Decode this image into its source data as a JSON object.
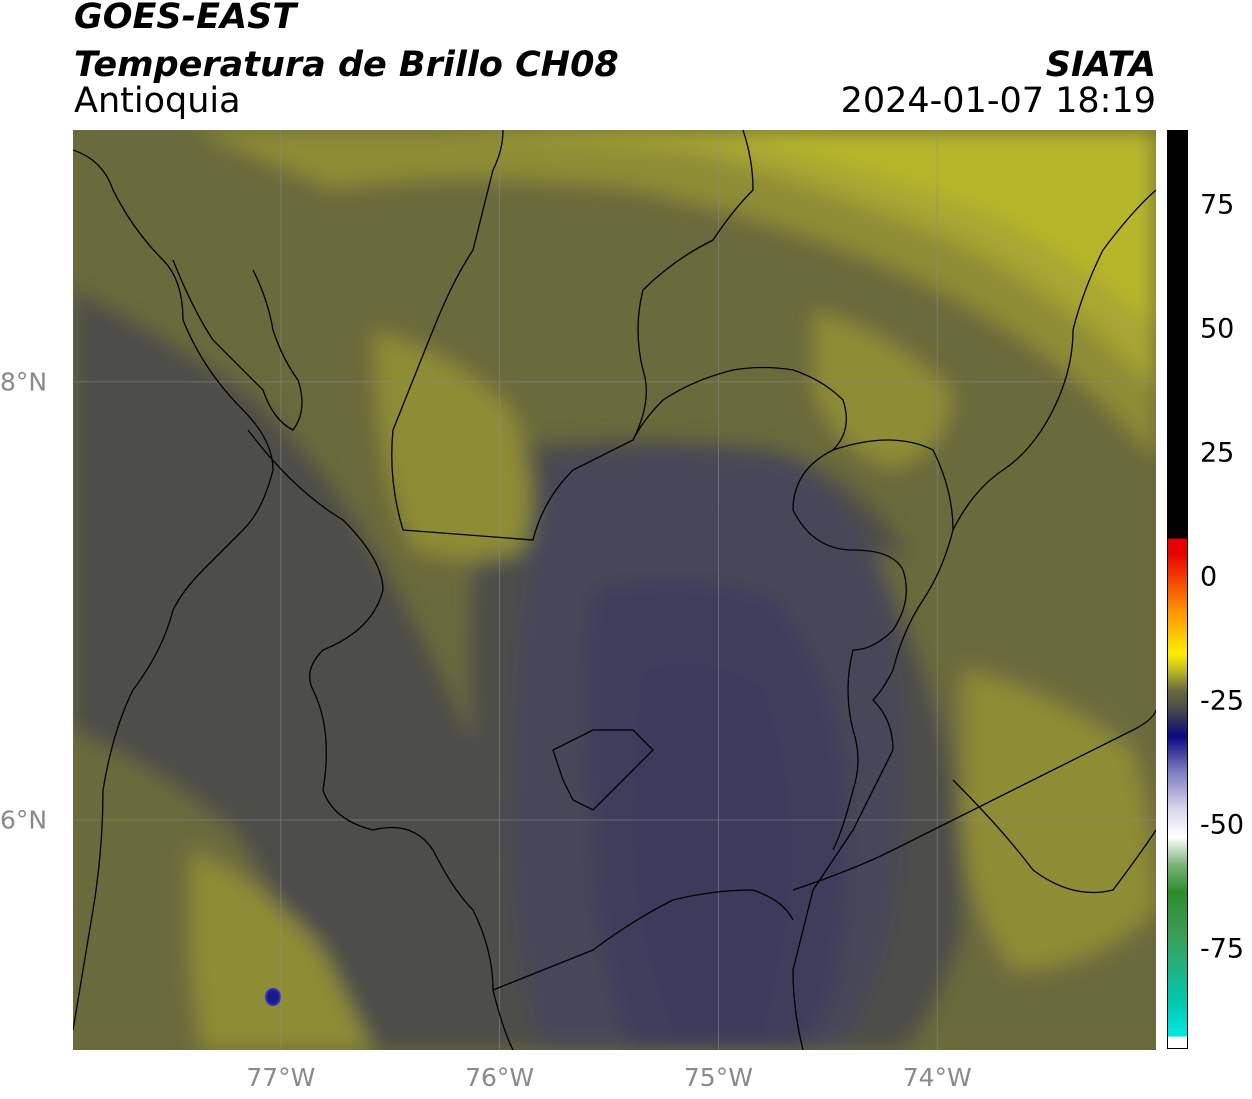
{
  "header": {
    "satellite": "GOES-EAST",
    "product": "Temperatura de Brillo CH08",
    "region": "Antioquia",
    "organization": "SIATA",
    "timestamp": "2024-01-07 18:19"
  },
  "map": {
    "lon_range": [
      -77.95,
      -73.0
    ],
    "lat_range": [
      4.95,
      9.15
    ],
    "lon_ticks": [
      {
        "value": -77,
        "label": "77°W"
      },
      {
        "value": -76,
        "label": "76°W"
      },
      {
        "value": -75,
        "label": "75°W"
      },
      {
        "value": -74,
        "label": "74°W"
      }
    ],
    "lat_ticks": [
      {
        "value": 8,
        "label": "8°N"
      },
      {
        "value": 6,
        "label": "6°N"
      }
    ],
    "gridlines": true
  },
  "colorbar": {
    "range": [
      -95,
      90
    ],
    "ticks": [
      "75",
      "50",
      "25",
      "0",
      "-25",
      "-50",
      "-75"
    ],
    "tick_values": [
      75,
      50,
      25,
      0,
      -25,
      -50,
      -75
    ],
    "colors": {
      "hot": "#000000",
      "red": "#e60000",
      "orange": "#ff8c00",
      "yellow": "#ffee00",
      "olive": "#b5b525",
      "grey": "#4a4a4a",
      "navy": "#0a0a80",
      "white": "#ffffff",
      "green": "#2e8b2e",
      "cyan": "#00e8e0"
    }
  },
  "field_colors": {
    "warm_yellow": "#b8b52b",
    "olive": "#8e8c35",
    "dark_olive": "#6a6a3c",
    "grey": "#4e4e4a",
    "slate": "#46465a",
    "deep_slate": "#3a3a5c"
  }
}
